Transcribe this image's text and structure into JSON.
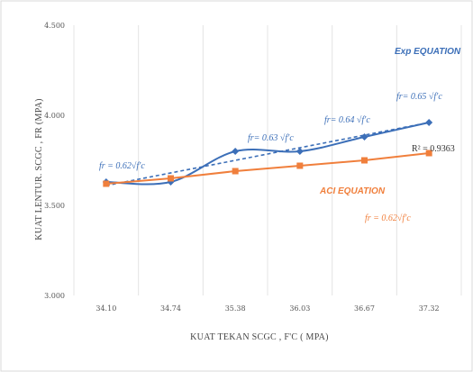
{
  "chart_data": {
    "type": "line",
    "xlabel": "KUAT TEKAN SCGC , F'C ( MPA)",
    "ylabel": "KUAT LENTUR. SCGC , FR  (MPA)",
    "ylim": [
      3.0,
      4.5
    ],
    "yticks": [
      "3.000",
      "3.500",
      "4.000",
      "4.500"
    ],
    "categories": [
      "34.10",
      "34.74",
      "35.38",
      "36.03",
      "36.67",
      "37.32"
    ],
    "grid": "vertical",
    "series": [
      {
        "name": "Exp EQUATION",
        "color": "#3c6fb8",
        "values": [
          3.63,
          3.63,
          3.8,
          3.8,
          3.88,
          3.96
        ]
      },
      {
        "name": "ACI EQUATION",
        "color": "#f07f3c",
        "values": [
          3.62,
          3.65,
          3.69,
          3.72,
          3.75,
          3.79
        ]
      }
    ],
    "trendline": {
      "color": "#3c6fb8",
      "style": "dashed",
      "start": 3.61,
      "end": 3.96,
      "r_squared_label": "R² = 0.9363"
    },
    "annotations": [
      {
        "text": "fr = 0.62√f'c",
        "color": "#3c6fb8"
      },
      {
        "text": "fr= 0.63 √f'c",
        "color": "#3c6fb8"
      },
      {
        "text": "fr= 0.64 √f'c",
        "color": "#3c6fb8"
      },
      {
        "text": "fr= 0.65 √f'c",
        "color": "#3c6fb8"
      },
      {
        "text": "fr = 0.62√f'c",
        "color": "#f07f3c"
      }
    ]
  }
}
